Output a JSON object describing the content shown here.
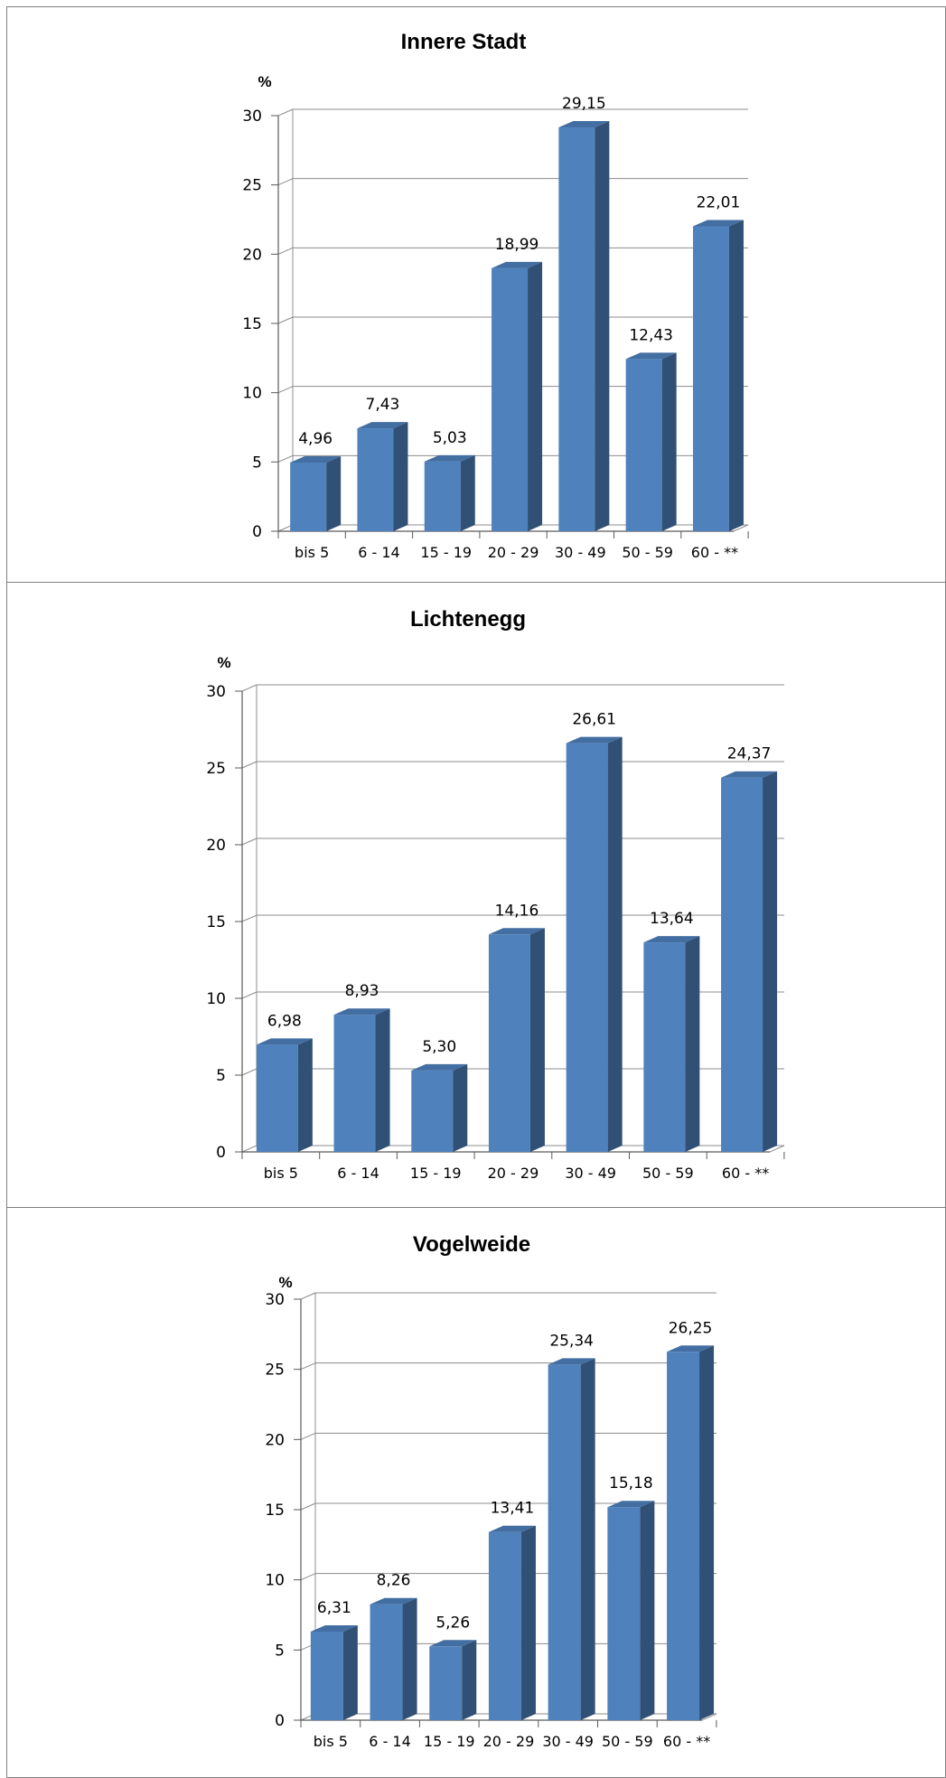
{
  "chart_data": [
    {
      "type": "bar",
      "title": "Innere Stadt",
      "ylabel": "%",
      "categories": [
        "bis 5",
        "6 - 14",
        "15 - 19",
        "20 - 29",
        "30 - 49",
        "50 - 59",
        "60 - **"
      ],
      "values": [
        4.96,
        7.43,
        5.03,
        18.99,
        29.15,
        12.43,
        22.01
      ],
      "data_labels": [
        "4,96",
        "7,43",
        "5,03",
        "18,99",
        "29,15",
        "12,43",
        "22,01"
      ],
      "yticks": [
        "0",
        "5",
        "10",
        "15",
        "20",
        "25",
        "30"
      ],
      "ylim": [
        0,
        30
      ],
      "grid": true,
      "legend": "none",
      "color": "#4f81bd"
    },
    {
      "type": "bar",
      "title": "Lichtenegg",
      "ylabel": "%",
      "categories": [
        "bis 5",
        "6 - 14",
        "15 - 19",
        "20 - 29",
        "30 - 49",
        "50 - 59",
        "60 - **"
      ],
      "values": [
        6.98,
        8.93,
        5.3,
        14.16,
        26.61,
        13.64,
        24.37
      ],
      "data_labels": [
        "6,98",
        "8,93",
        "5,30",
        "14,16",
        "26,61",
        "13,64",
        "24,37"
      ],
      "yticks": [
        "0",
        "5",
        "10",
        "15",
        "20",
        "25",
        "30"
      ],
      "ylim": [
        0,
        30
      ],
      "grid": true,
      "legend": "none",
      "color": "#4f81bd"
    },
    {
      "type": "bar",
      "title": "Vogelweide",
      "ylabel": "%",
      "categories": [
        "bis 5",
        "6 - 14",
        "15 - 19",
        "20 - 29",
        "30 - 49",
        "50 - 59",
        "60 - **"
      ],
      "values": [
        6.31,
        8.26,
        5.26,
        13.41,
        25.34,
        15.18,
        26.25
      ],
      "data_labels": [
        "6,31",
        "8,26",
        "5,26",
        "13,41",
        "25,34",
        "15,18",
        "26,25"
      ],
      "yticks": [
        "0",
        "5",
        "10",
        "15",
        "20",
        "25",
        "30"
      ],
      "ylim": [
        0,
        30
      ],
      "grid": true,
      "legend": "none",
      "color": "#4f81bd"
    }
  ]
}
